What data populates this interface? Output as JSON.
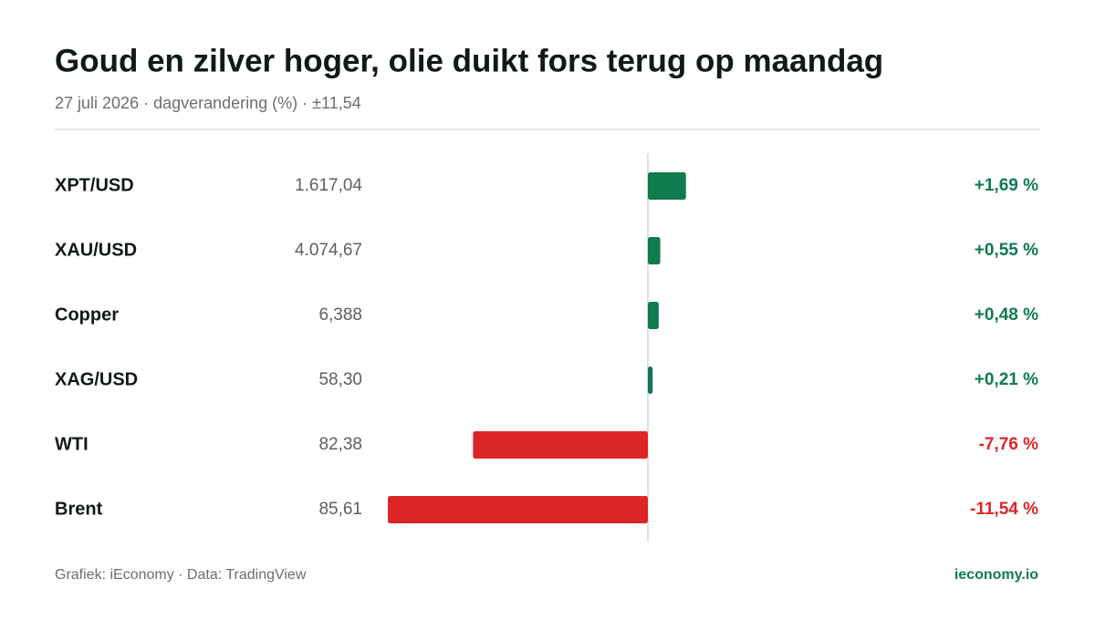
{
  "chart_data": {
    "type": "diverging-bar",
    "title": "Goud en zilver hoger, olie duikt fors terug op maandag",
    "subtitle": "27 juli 2026 · dagverandering (%) · ±11,54",
    "categories": [
      "XPT/USD",
      "XAU/USD",
      "Copper",
      "XAG/USD",
      "WTI",
      "Brent"
    ],
    "prices": [
      "1.617,04",
      "4.074,67",
      "6,388",
      "58,30",
      "82,38",
      "85,61"
    ],
    "values": [
      1.69,
      0.55,
      0.48,
      0.21,
      -7.76,
      -11.54
    ],
    "value_labels": [
      "+1,69 %",
      "+0,55 %",
      "+0,48 %",
      "+0,21 %",
      "-7,76 %",
      "-11,54 %"
    ],
    "xlim": [
      -11.54,
      11.54
    ],
    "positive_color": "#0f7b4f",
    "negative_color": "#dc2626",
    "source": "Grafiek: iEconomy · Data: TradingView",
    "brand": "ieconomy.io"
  }
}
